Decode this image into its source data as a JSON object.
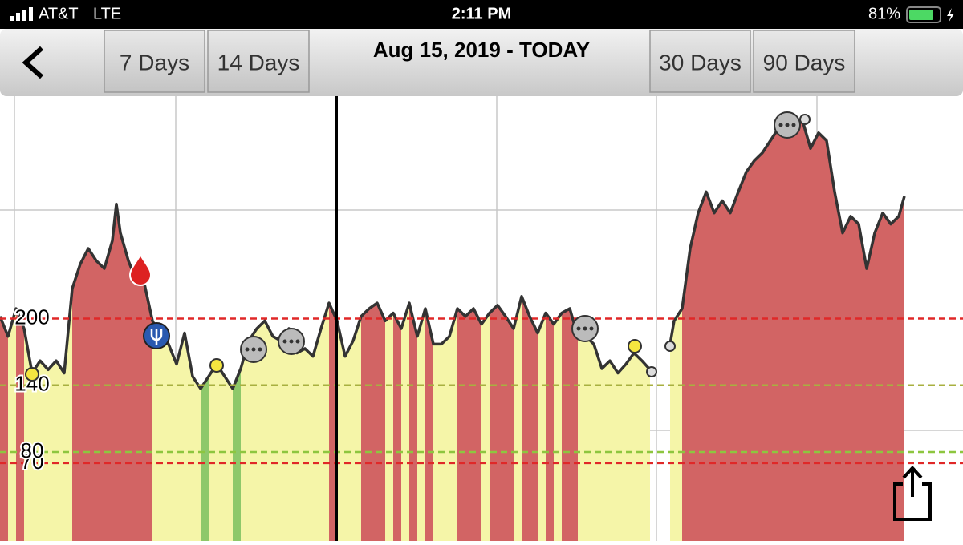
{
  "status_bar": {
    "carrier": "AT&T",
    "network": "LTE",
    "time": "2:11 PM",
    "battery": "81%"
  },
  "toolbar": {
    "buttons": [
      "7 Days",
      "14 Days",
      "30 Days",
      "90 Days"
    ],
    "title": "Aug 15, 2019 - TODAY"
  },
  "chart_data": {
    "type": "line",
    "x": [
      0,
      1,
      2,
      3,
      4,
      5,
      6,
      7,
      8,
      9,
      10,
      11,
      12,
      13,
      14,
      14.5,
      15,
      16,
      17,
      18,
      19,
      20,
      21,
      22,
      23,
      24,
      25,
      26,
      27,
      28,
      29,
      30,
      31,
      32,
      33,
      34,
      35,
      36,
      37,
      38,
      39,
      40,
      41,
      42,
      43,
      44,
      45,
      46,
      47,
      48,
      49,
      50,
      51,
      52,
      53,
      54,
      55,
      56,
      57,
      58,
      59,
      60,
      61,
      62,
      63,
      64,
      65,
      66,
      67,
      68,
      69,
      70,
      71,
      72,
      73,
      74,
      75,
      76,
      77,
      78,
      79,
      80,
      81,
      82,
      83.5,
      84,
      85,
      86,
      87,
      88,
      89,
      90,
      91,
      92,
      93,
      94,
      95,
      96,
      97,
      98,
      99,
      100,
      101,
      102,
      103,
      104,
      105,
      106,
      107,
      108,
      109,
      110,
      111,
      112,
      112.7
    ],
    "values": [
      202,
      184,
      209,
      191,
      151,
      162,
      154,
      162,
      151,
      227,
      249,
      263,
      252,
      245,
      270,
      303,
      277,
      252,
      234,
      231,
      198,
      184,
      177,
      159,
      187,
      148,
      137,
      148,
      159,
      148,
      137,
      155,
      180,
      191,
      198,
      184,
      180,
      191,
      169,
      173,
      166,
      191,
      214,
      198,
      166,
      180,
      202,
      209,
      214,
      198,
      205,
      191,
      214,
      184,
      209,
      177,
      177,
      184,
      209,
      202,
      209,
      195,
      205,
      212,
      202,
      191,
      220,
      202,
      187,
      205,
      195,
      205,
      209,
      184,
      184,
      177,
      155,
      162,
      151,
      159,
      169,
      162,
      154,
      null,
      177,
      198,
      209,
      263,
      295,
      314,
      295,
      306,
      295,
      314,
      332,
      342,
      349,
      360,
      371,
      378,
      371,
      378,
      353,
      367,
      360,
      314,
      277,
      292,
      285,
      245,
      277,
      295,
      285,
      292,
      310
    ],
    "color": "#333333",
    "xlim": [
      0,
      120
    ],
    "ylim": [
      0,
      400
    ],
    "yticks": [
      70,
      80,
      140,
      200
    ],
    "tick_colors": [
      "#e02828",
      "#8dc63f",
      "#a8b040",
      "#e02828"
    ],
    "zone_colors": [
      "#8ec86a",
      "#f5f5a8",
      "#d26464"
    ]
  }
}
